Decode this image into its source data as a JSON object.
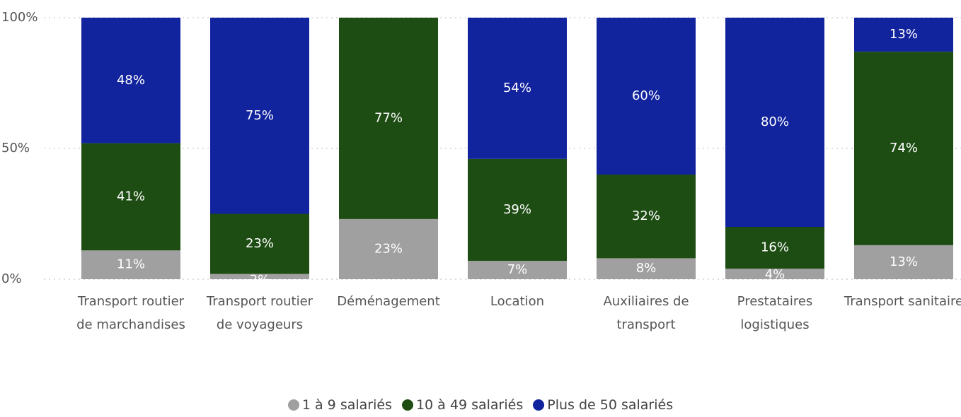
{
  "chart_data": {
    "type": "stacked_bar_100",
    "categories": [
      "Transport routier de marchandises",
      "Transport routier de voyageurs",
      "Déménagement",
      "Location",
      "Auxiliaires de transport",
      "Prestataires logistiques",
      "Transport sanitaire"
    ],
    "series": [
      {
        "name": "1 à 9 salariés",
        "color": "#a0a0a0",
        "values": [
          11,
          2,
          23,
          7,
          8,
          4,
          13
        ],
        "value_labels": [
          "11%",
          "2%",
          "23%",
          "7%",
          "8%",
          "4%",
          "13%"
        ]
      },
      {
        "name": "10 à 49 salariés",
        "color": "#1e4d14",
        "values": [
          41,
          23,
          77,
          39,
          32,
          16,
          74
        ],
        "value_labels": [
          "41%",
          "23%",
          "77%",
          "39%",
          "32%",
          "16%",
          "74%"
        ]
      },
      {
        "name": "Plus de 50 salariés",
        "color": "#12239e",
        "values": [
          48,
          75,
          null,
          54,
          60,
          80,
          13
        ],
        "value_labels": [
          "48%",
          "75%",
          null,
          "54%",
          "60%",
          "80%",
          "13%"
        ]
      }
    ],
    "ylim": [
      0,
      100
    ],
    "yticks": [
      {
        "value": 0,
        "label": "0%"
      },
      {
        "value": 50,
        "label": "50%"
      },
      {
        "value": 100,
        "label": "100%"
      }
    ],
    "grid": true,
    "legend": "bottom"
  }
}
